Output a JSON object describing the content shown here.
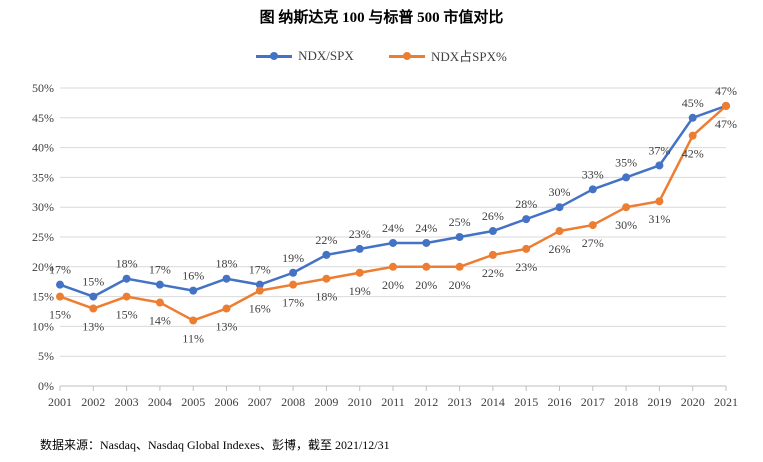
{
  "title": "图 纳斯达克 100 与标普 500 市值对比",
  "source": "数据来源：Nasdaq、Nasdaq Global Indexes、彭博，截至 2021/12/31",
  "chart_data": {
    "type": "line",
    "title": "图 纳斯达克 100 与标普 500 市值对比",
    "xlabel": "",
    "ylabel": "",
    "categories": [
      "2001",
      "2002",
      "2003",
      "2004",
      "2005",
      "2006",
      "2007",
      "2008",
      "2009",
      "2010",
      "2011",
      "2012",
      "2013",
      "2014",
      "2015",
      "2016",
      "2017",
      "2018",
      "2019",
      "2020",
      "2021"
    ],
    "ylim": [
      0,
      50
    ],
    "yticks": [
      0,
      5,
      10,
      15,
      20,
      25,
      30,
      35,
      40,
      45,
      50
    ],
    "ytick_labels": [
      "0%",
      "5%",
      "10%",
      "15%",
      "20%",
      "25%",
      "30%",
      "35%",
      "40%",
      "45%",
      "50%"
    ],
    "grid": "horizontal",
    "legend": "top-center",
    "series": [
      {
        "name": "NDX/SPX",
        "color": "#4472C4",
        "values": [
          17,
          15,
          18,
          17,
          16,
          18,
          17,
          19,
          22,
          23,
          24,
          24,
          25,
          26,
          28,
          30,
          33,
          35,
          37,
          45,
          47
        ],
        "labels": [
          "17%",
          "15%",
          "18%",
          "17%",
          "16%",
          "18%",
          "17%",
          "19%",
          "22%",
          "23%",
          "24%",
          "24%",
          "25%",
          "26%",
          "28%",
          "30%",
          "33%",
          "35%",
          "37%",
          "45%",
          "47%"
        ]
      },
      {
        "name": "NDX占SPX%",
        "color": "#ED7D31",
        "values": [
          15,
          13,
          15,
          14,
          11,
          13,
          16,
          17,
          18,
          19,
          20,
          20,
          20,
          22,
          23,
          26,
          27,
          30,
          31,
          42,
          47
        ],
        "labels": [
          "15%",
          "13%",
          "15%",
          "14%",
          "11%",
          "13%",
          "16%",
          "17%",
          "18%",
          "19%",
          "20%",
          "20%",
          "20%",
          "22%",
          "23%",
          "26%",
          "27%",
          "30%",
          "31%",
          "42%",
          "47%"
        ]
      }
    ]
  }
}
